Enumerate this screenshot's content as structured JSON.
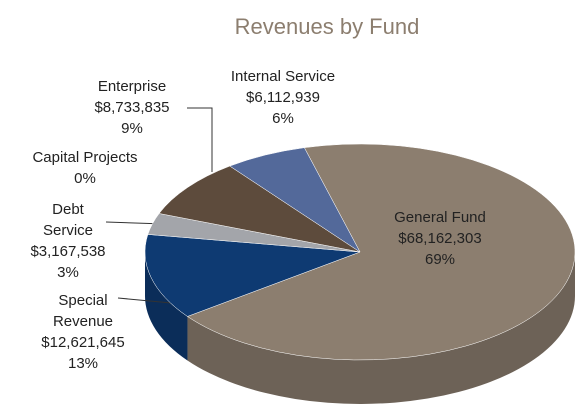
{
  "chart_data": {
    "type": "pie",
    "title": "Revenues by Fund",
    "categories": [
      "General Fund",
      "Special Revenue",
      "Debt Service",
      "Capital Projects",
      "Enterprise",
      "Internal Service"
    ],
    "values": [
      68162303,
      12621645,
      3167538,
      0,
      8733835,
      6112939
    ],
    "value_labels": [
      "$68,162,303",
      "$12,621,645",
      "$3,167,538",
      null,
      "$8,733,835",
      "$6,112,939"
    ],
    "percent_labels": [
      "69%",
      "13%",
      "3%",
      "0%",
      "9%",
      "6%"
    ],
    "colors": [
      "#8c7e6f",
      "#0e3a72",
      "#a3a5aa",
      "#c9b27c",
      "#5d4b3c",
      "#53699a"
    ]
  }
}
